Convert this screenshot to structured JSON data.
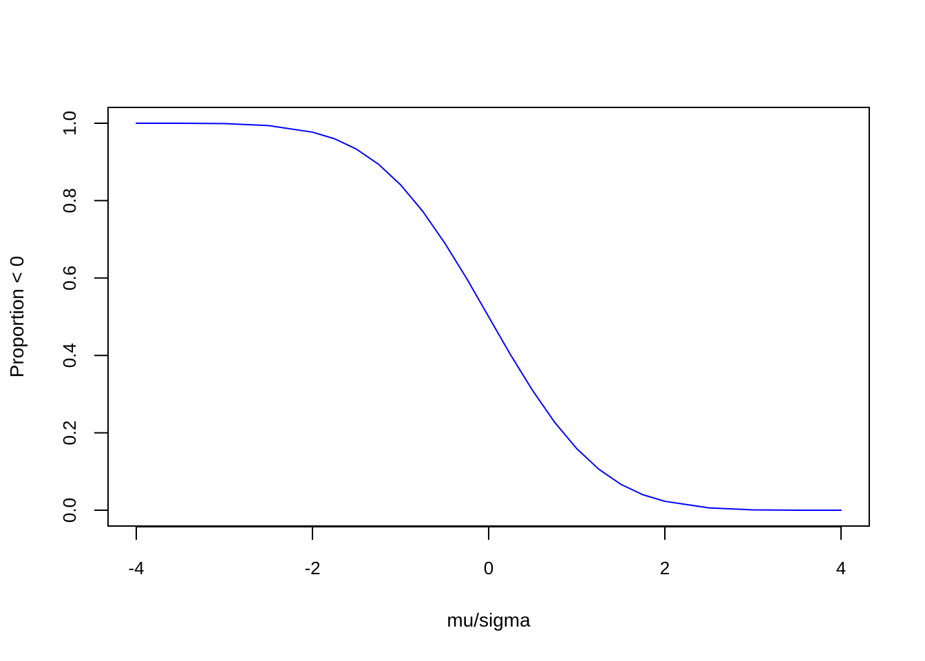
{
  "chart_data": {
    "type": "line",
    "title": "",
    "xlabel": "mu/sigma",
    "ylabel": "Proportion < 0",
    "xlim": [
      -4,
      4
    ],
    "ylim": [
      0,
      1
    ],
    "x_ticks": [
      -4,
      -2,
      0,
      2,
      4
    ],
    "x_tick_labels": [
      "-4",
      "-2",
      "0",
      "2",
      "4"
    ],
    "y_ticks": [
      0,
      0.2,
      0.4,
      0.6,
      0.8,
      1
    ],
    "y_tick_labels": [
      "0.0",
      "0.2",
      "0.4",
      "0.6",
      "0.8",
      "1.0"
    ],
    "grid": false,
    "legend": "none",
    "series": [
      {
        "color": "#0000ff",
        "x": [
          -4,
          -3.5,
          -3,
          -2.5,
          -2,
          -1.75,
          -1.5,
          -1.25,
          -1,
          -0.75,
          -0.5,
          -0.25,
          0,
          0.25,
          0.5,
          0.75,
          1,
          1.25,
          1.5,
          1.75,
          2,
          2.5,
          3,
          3.5,
          4
        ],
        "y": [
          1.0,
          1.0,
          0.999,
          0.994,
          0.977,
          0.96,
          0.933,
          0.894,
          0.841,
          0.773,
          0.691,
          0.599,
          0.5,
          0.401,
          0.309,
          0.227,
          0.159,
          0.106,
          0.067,
          0.04,
          0.023,
          0.006,
          0.001,
          0.0,
          0.0
        ]
      }
    ]
  }
}
